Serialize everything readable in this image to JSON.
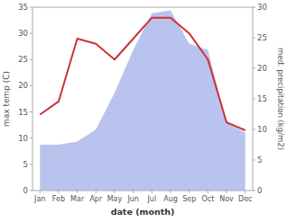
{
  "chart_data": {
    "type": "line",
    "xlabel": "date (month)",
    "ylabel": "max temp (C)",
    "y2label": "med. precipitation (kg/m2)",
    "categories": [
      "Jan",
      "Feb",
      "Mar",
      "Apr",
      "May",
      "Jun",
      "Jul",
      "Aug",
      "Sep",
      "Oct",
      "Nov",
      "Dec"
    ],
    "series": [
      {
        "type": "area",
        "axis": "y2",
        "color": "#b8c4ee",
        "values": [
          7.5,
          7.5,
          8.0,
          10.0,
          16.0,
          23.0,
          29.0,
          29.5,
          24.0,
          23.0,
          11.0,
          9.5
        ]
      },
      {
        "type": "line",
        "color": "#cc3333",
        "values": [
          14.5,
          17.0,
          29.0,
          28.0,
          25.0,
          29.0,
          33.0,
          33.0,
          30.0,
          25.0,
          13.0,
          11.5
        ]
      }
    ],
    "ylim": [
      0,
      35
    ],
    "yticks": [
      0,
      5,
      10,
      15,
      20,
      25,
      30,
      35
    ],
    "y2lim": [
      0,
      30
    ],
    "y2ticks": [
      0,
      5,
      10,
      15,
      20,
      25,
      30
    ],
    "grid": false
  }
}
